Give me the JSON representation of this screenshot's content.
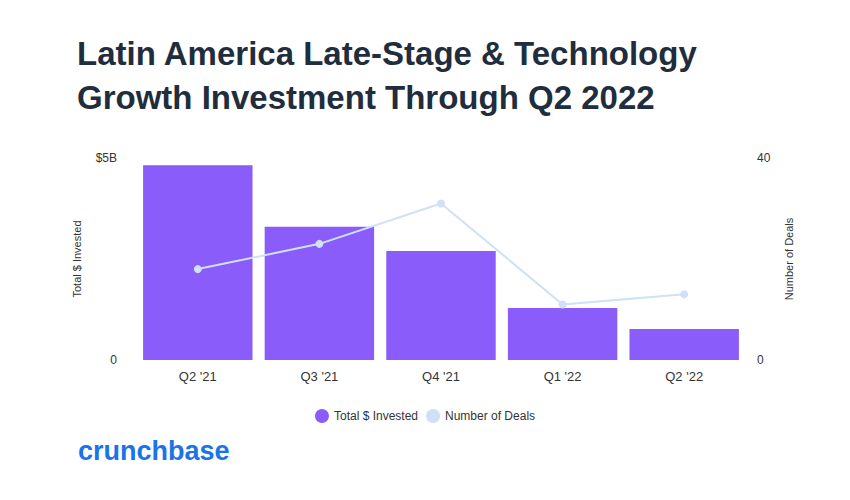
{
  "chart_data": {
    "type": "bar",
    "title": "Latin America Late-Stage & Technology Growth Investment Through Q2 2022",
    "categories": [
      "Q2 '21",
      "Q3 '21",
      "Q4 '21",
      "Q1 '22",
      "Q2 '22"
    ],
    "y_label": "Total $ Invested",
    "y2_label": "Number of Deals",
    "series": [
      {
        "name": "Total $ Invested",
        "type": "bar",
        "color": "#8a5cfa",
        "values": [
          4.82,
          3.3,
          2.7,
          1.29,
          0.77
        ]
      },
      {
        "name": "Number of Deals",
        "type": "line",
        "axis": "y2",
        "color": "#cfe0f7",
        "marker": "circle",
        "values": [
          18,
          23,
          31,
          11,
          13
        ]
      }
    ],
    "ylim": [
      0,
      5
    ],
    "yticks": [
      0,
      {
        "value": 5,
        "label": "$5B"
      }
    ],
    "y2lim": [
      0,
      40
    ],
    "y2ticks": [
      0,
      40
    ],
    "grid": false,
    "legend": "bottom",
    "annotations": [
      "crunchbase"
    ]
  }
}
